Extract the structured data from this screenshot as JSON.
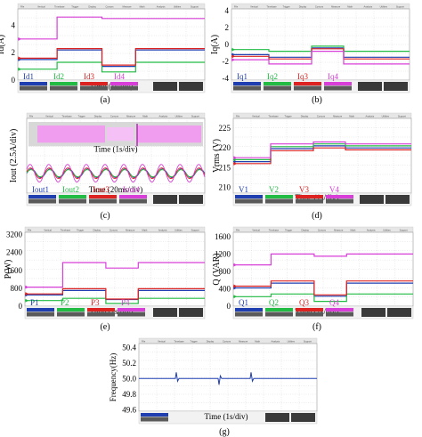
{
  "panels": [
    {
      "id": "a",
      "caption": "(a)",
      "ylabel": "Id(A)",
      "xlabel": "Time (1s/div)",
      "yticks": [
        "0",
        "2",
        "4"
      ],
      "ylim": [
        0,
        5.2
      ],
      "legend": [
        "Id1",
        "Id2",
        "Id3",
        "Id4"
      ],
      "series_colors": [
        "#1f3fb0",
        "#22bb44",
        "#dd2222",
        "#d83fd8"
      ],
      "segments_x": [
        0,
        2.1,
        4.5,
        6.3,
        10
      ],
      "series": [
        {
          "name": "Id1",
          "values": [
            1.5,
            2.2,
            1.0,
            2.2
          ]
        },
        {
          "name": "Id2",
          "values": [
            0.8,
            1.3,
            0.6,
            1.3
          ]
        },
        {
          "name": "Id3",
          "values": [
            1.6,
            2.3,
            1.1,
            2.3
          ]
        },
        {
          "name": "Id4",
          "values": [
            3.0,
            4.6,
            4.5,
            4.5
          ]
        }
      ]
    },
    {
      "id": "b",
      "caption": "(b)",
      "ylabel": "Iq(A)",
      "xlabel": "",
      "yticks": [
        "4",
        "2",
        "0",
        "-2",
        "-4"
      ],
      "ylim": [
        -4.2,
        4.2
      ],
      "legend": [
        "Iq1",
        "Iq2",
        "Iq3",
        "Iq4"
      ],
      "series_colors": [
        "#1f3fb0",
        "#22bb44",
        "#dd2222",
        "#d83fd8"
      ],
      "segments_x": [
        0,
        2.1,
        4.5,
        6.3,
        10
      ],
      "series": [
        {
          "name": "Iq1",
          "values": [
            -1.2,
            -1.5,
            -0.4,
            -1.5
          ]
        },
        {
          "name": "Iq2",
          "values": [
            -0.6,
            -0.8,
            -0.2,
            -0.8
          ]
        },
        {
          "name": "Iq3",
          "values": [
            -1.4,
            -1.7,
            -0.5,
            -1.7
          ]
        },
        {
          "name": "Iq4",
          "values": [
            -1.8,
            -2.3,
            -0.8,
            -2.3
          ]
        }
      ]
    },
    {
      "id": "c",
      "caption": "(c)",
      "ylabel": "Iout (2.5A/div)",
      "xlabel_top": "Time (1s/div)",
      "xlabel_bottom": "Time (20ms/div)",
      "legend": [
        "Iout1",
        "Iout2",
        "Iout3",
        "Iout4"
      ],
      "series_colors": [
        "#1f3fb0",
        "#22bb44",
        "#dd2222",
        "#d83fd8"
      ]
    },
    {
      "id": "d",
      "caption": "(d)",
      "ylabel": "Vrms (V)",
      "xlabel": "Time (1s/div)",
      "yticks": [
        "225",
        "220",
        "215",
        "210"
      ],
      "ylim": [
        208.5,
        227.5
      ],
      "legend": [
        "V1",
        "V2",
        "V3",
        "V4"
      ],
      "series_colors": [
        "#1f3fb0",
        "#22bb44",
        "#dd2222",
        "#d83fd8"
      ],
      "segments_x": [
        0,
        2.1,
        4.5,
        6.3,
        10
      ],
      "series": [
        {
          "name": "V1",
          "values": [
            216.5,
            219.8,
            220.5,
            220.0
          ]
        },
        {
          "name": "V2",
          "values": [
            217.0,
            220.3,
            221.0,
            220.5
          ]
        },
        {
          "name": "V3",
          "values": [
            216.0,
            219.3,
            220.0,
            219.5
          ]
        },
        {
          "name": "V4",
          "values": [
            217.5,
            221.0,
            221.5,
            221.0
          ]
        }
      ]
    },
    {
      "id": "e",
      "caption": "(e)",
      "ylabel": "P(W)",
      "xlabel": "Time (1s/div)",
      "yticks": [
        "3200",
        "2400",
        "1600",
        "800",
        "0"
      ],
      "ylim": [
        0,
        3300
      ],
      "legend": [
        "P1",
        "P2",
        "P3",
        "P4"
      ],
      "series_colors": [
        "#1f3fb0",
        "#22bb44",
        "#dd2222",
        "#d83fd8"
      ],
      "segments_x": [
        0,
        2.1,
        4.5,
        6.3,
        10
      ],
      "series": [
        {
          "name": "P1",
          "values": [
            500,
            700,
            300,
            700
          ]
        },
        {
          "name": "P2",
          "values": [
            250,
            350,
            120,
            350
          ]
        },
        {
          "name": "P3",
          "values": [
            550,
            780,
            320,
            780
          ]
        },
        {
          "name": "P4",
          "values": [
            850,
            1950,
            1700,
            1950
          ]
        }
      ]
    },
    {
      "id": "f",
      "caption": "(f)",
      "ylabel": "Q (VAR)",
      "xlabel": "Time (1s/div)",
      "yticks": [
        "1600",
        "1200",
        "800",
        "400",
        "0"
      ],
      "ylim": [
        0,
        1700
      ],
      "legend": [
        "Q1",
        "Q2",
        "Q3",
        "Q4"
      ],
      "series_colors": [
        "#1f3fb0",
        "#22bb44",
        "#dd2222",
        "#d83fd8"
      ],
      "segments_x": [
        0,
        2.1,
        4.5,
        6.3,
        10
      ],
      "series": [
        {
          "name": "Q1",
          "values": [
            420,
            530,
            230,
            530
          ]
        },
        {
          "name": "Q2",
          "values": [
            220,
            280,
            110,
            280
          ]
        },
        {
          "name": "Q3",
          "values": [
            460,
            580,
            260,
            580
          ]
        },
        {
          "name": "Q4",
          "values": [
            950,
            1200,
            1150,
            1200
          ]
        }
      ]
    },
    {
      "id": "g",
      "caption": "(g)",
      "ylabel": "Frequency(Hz)",
      "xlabel": "Time (1s/div)",
      "yticks": [
        "50.4",
        "50.2",
        "50.0",
        "49.8",
        "49.6"
      ],
      "ylim": [
        49.58,
        50.45
      ],
      "legend": [],
      "series_colors": [
        "#1f3fb0"
      ],
      "series": [
        {
          "name": "",
          "values": [
            50.0
          ],
          "events_x": [
            2.1,
            4.5,
            6.3
          ]
        }
      ]
    }
  ],
  "chart_data": [
    {
      "type": "line",
      "panel": "a",
      "ylabel": "Id(A)",
      "xlabel": "Time (1s/div)",
      "ylim": [
        0,
        5.2
      ],
      "series": [
        {
          "name": "Id1"
        },
        {
          "name": "Id2"
        },
        {
          "name": "Id3"
        },
        {
          "name": "Id4"
        }
      ]
    },
    {
      "type": "line",
      "panel": "b",
      "ylabel": "Iq(A)",
      "ylim": [
        -4.2,
        4.2
      ],
      "series": [
        {
          "name": "Iq1"
        },
        {
          "name": "Iq2"
        },
        {
          "name": "Iq3"
        },
        {
          "name": "Iq4"
        }
      ]
    },
    {
      "type": "line",
      "panel": "c",
      "ylabel": "Iout (2.5A/div)",
      "series": [
        {
          "name": "Iout1"
        },
        {
          "name": "Iout2"
        },
        {
          "name": "Iout3"
        },
        {
          "name": "Iout4"
        }
      ]
    },
    {
      "type": "line",
      "panel": "d",
      "ylabel": "Vrms (V)",
      "xlabel": "Time (1s/div)",
      "ylim": [
        208.5,
        227.5
      ],
      "series": [
        {
          "name": "V1"
        },
        {
          "name": "V2"
        },
        {
          "name": "V3"
        },
        {
          "name": "V4"
        }
      ]
    },
    {
      "type": "line",
      "panel": "e",
      "ylabel": "P(W)",
      "xlabel": "Time (1s/div)",
      "ylim": [
        0,
        3300
      ],
      "series": [
        {
          "name": "P1"
        },
        {
          "name": "P2"
        },
        {
          "name": "P3"
        },
        {
          "name": "P4"
        }
      ]
    },
    {
      "type": "line",
      "panel": "f",
      "ylabel": "Q (VAR)",
      "xlabel": "Time (1s/div)",
      "ylim": [
        0,
        1700
      ],
      "series": [
        {
          "name": "Q1"
        },
        {
          "name": "Q2"
        },
        {
          "name": "Q3"
        },
        {
          "name": "Q4"
        }
      ]
    },
    {
      "type": "line",
      "panel": "g",
      "ylabel": "Frequency(Hz)",
      "xlabel": "Time (1s/div)",
      "ylim": [
        49.58,
        50.45
      ]
    }
  ]
}
